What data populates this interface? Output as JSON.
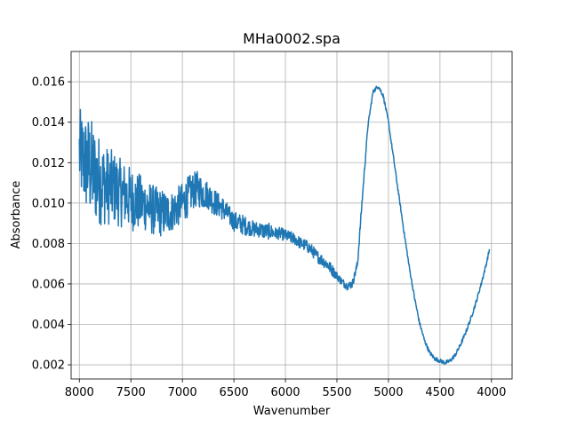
{
  "chart_data": {
    "type": "line",
    "title": "MHa0002.spa",
    "xlabel": "Wavenumber",
    "ylabel": "Absorbance",
    "xlim": [
      8080,
      3800
    ],
    "ylim": [
      0.0013,
      0.0175
    ],
    "x_inverted": true,
    "grid": true,
    "x_ticks": [
      8000,
      7500,
      7000,
      6500,
      6000,
      5500,
      5000,
      4500,
      4000
    ],
    "x_tick_labels": [
      "8000",
      "7500",
      "7000",
      "6500",
      "6000",
      "5500",
      "5000",
      "4500",
      "4000"
    ],
    "y_ticks": [
      0.002,
      0.004,
      0.006,
      0.008,
      0.01,
      0.012,
      0.014,
      0.016
    ],
    "y_tick_labels": [
      "0.002",
      "0.004",
      "0.006",
      "0.008",
      "0.010",
      "0.012",
      "0.014",
      "0.016"
    ],
    "series": [
      {
        "color": "#1f77b4",
        "x": [
          8000,
          7950,
          7900,
          7850,
          7800,
          7750,
          7700,
          7650,
          7600,
          7550,
          7500,
          7450,
          7400,
          7350,
          7300,
          7250,
          7200,
          7150,
          7100,
          7050,
          7000,
          6950,
          6900,
          6850,
          6800,
          6750,
          6700,
          6650,
          6600,
          6550,
          6500,
          6450,
          6400,
          6350,
          6300,
          6250,
          6200,
          6150,
          6100,
          6050,
          6000,
          5950,
          5900,
          5850,
          5800,
          5750,
          5700,
          5650,
          5600,
          5550,
          5500,
          5450,
          5400,
          5350,
          5300,
          5250,
          5200,
          5150,
          5100,
          5050,
          5000,
          4950,
          4900,
          4850,
          4800,
          4750,
          4700,
          4650,
          4600,
          4550,
          4500,
          4450,
          4400,
          4350,
          4300,
          4250,
          4200,
          4150,
          4100,
          4050,
          4020
        ],
        "y": [
          0.0125,
          0.012,
          0.0118,
          0.0114,
          0.0111,
          0.0109,
          0.0108,
          0.0107,
          0.0105,
          0.0104,
          0.0102,
          0.0101,
          0.01,
          0.0099,
          0.0097,
          0.0096,
          0.0095,
          0.0095,
          0.0096,
          0.0098,
          0.01,
          0.0103,
          0.0106,
          0.0107,
          0.0105,
          0.0104,
          0.0101,
          0.0099,
          0.0097,
          0.0094,
          0.0091,
          0.009,
          0.0089,
          0.0088,
          0.0087,
          0.0087,
          0.0086,
          0.0086,
          0.0085,
          0.0085,
          0.0084,
          0.0083,
          0.0082,
          0.008,
          0.0079,
          0.0077,
          0.0074,
          0.0072,
          0.007,
          0.0067,
          0.0064,
          0.0061,
          0.0059,
          0.006,
          0.007,
          0.0105,
          0.0138,
          0.0155,
          0.0158,
          0.0153,
          0.014,
          0.0122,
          0.0104,
          0.0086,
          0.0069,
          0.0054,
          0.0041,
          0.0032,
          0.0026,
          0.0023,
          0.0022,
          0.0021,
          0.0022,
          0.0025,
          0.003,
          0.0036,
          0.0043,
          0.0051,
          0.006,
          0.007,
          0.0077
        ],
        "noise_amplitude": [
          0.0022,
          0.0024,
          0.0026,
          0.0024,
          0.0022,
          0.002,
          0.0019,
          0.0018,
          0.0017,
          0.0016,
          0.0016,
          0.0015,
          0.0014,
          0.0013,
          0.0013,
          0.0012,
          0.0012,
          0.0011,
          0.001,
          0.001,
          0.001,
          0.001,
          0.0009,
          0.0009,
          0.0008,
          0.0007,
          0.0007,
          0.0006,
          0.0006,
          0.0005,
          0.0005,
          0.0005,
          0.0005,
          0.0004,
          0.0004,
          0.0004,
          0.0004,
          0.0004,
          0.0003,
          0.0003,
          0.0003,
          0.0003,
          0.0003,
          0.0003,
          0.0003,
          0.0003,
          0.0003,
          0.0003,
          0.0003,
          0.0003,
          0.0002,
          0.0002,
          0.0002,
          0.0002,
          0.0002,
          0.0002,
          0.0001,
          0.0001,
          0.0001,
          0.0001,
          0.0001,
          0.0001,
          0.0001,
          0.0001,
          0.0001,
          0.0001,
          0.0001,
          0.0001,
          0.0001,
          0.0001,
          0.0001,
          0.0001,
          0.0001,
          0.0001,
          0.0001,
          0.0001,
          0.0001,
          0.0001,
          0.0001,
          0.0001,
          0.0001
        ]
      }
    ]
  }
}
